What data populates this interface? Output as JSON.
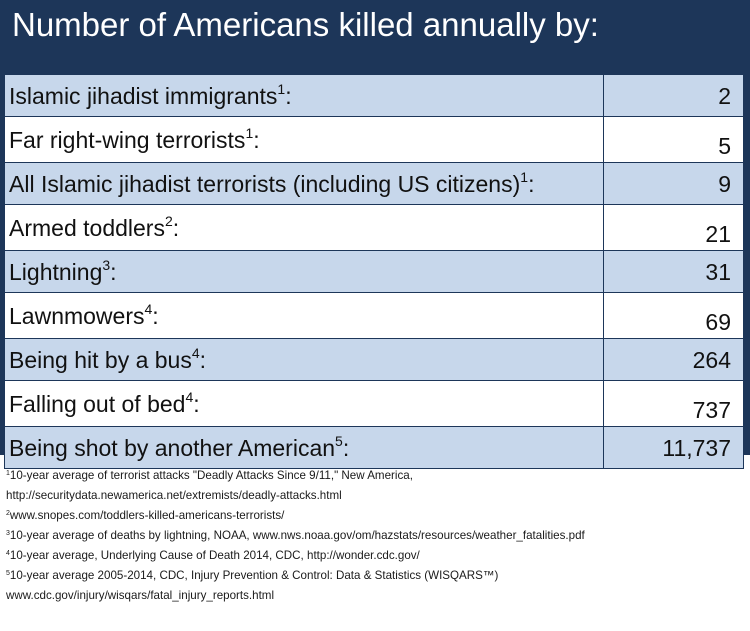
{
  "title": "Number of Americans killed annually by:",
  "chart_data": {
    "type": "table",
    "rows": [
      {
        "label": "Islamic jihadist immigrants",
        "ref": "1",
        "value": "2"
      },
      {
        "label": "Far right-wing terrorists",
        "ref": "1",
        "value": "5"
      },
      {
        "label": "All Islamic jihadist terrorists (including US citizens)",
        "ref": "1",
        "value": "9"
      },
      {
        "label": "Armed toddlers",
        "ref": "2",
        "value": "21"
      },
      {
        "label": "Lightning",
        "ref": "3",
        "value": "31"
      },
      {
        "label": "Lawnmowers",
        "ref": "4",
        "value": "69"
      },
      {
        "label": "Being hit by a bus",
        "ref": "4",
        "value": "264"
      },
      {
        "label": "Falling out of bed",
        "ref": "4",
        "value": "737"
      },
      {
        "label": "Being shot by another American",
        "ref": "5",
        "value": "11,737"
      }
    ]
  },
  "footnotes": [
    {
      "ref": "1",
      "text": "10-year average of terrorist attacks \"Deadly Attacks Since 9/11,\" New America,"
    },
    {
      "ref": "",
      "text": "http://securitydata.newamerica.net/extremists/deadly-attacks.html"
    },
    {
      "ref": "2",
      "text": "www.snopes.com/toddlers-killed-americans-terrorists/"
    },
    {
      "ref": "3",
      "text": "10-year average of deaths by lightning, NOAA, www.nws.noaa.gov/om/hazstats/resources/weather_fatalities.pdf"
    },
    {
      "ref": "4",
      "text": "10-year average, Underlying Cause of Death 2014, CDC, http://wonder.cdc.gov/"
    },
    {
      "ref": "5",
      "text": "10-year average 2005-2014, CDC, Injury Prevention & Control: Data & Statistics (WISQARS™)"
    },
    {
      "ref": "",
      "text": "www.cdc.gov/injury/wisqars/fatal_injury_reports.html"
    }
  ],
  "colors": {
    "header_bg": "#1d3659",
    "row_shaded": "#c7d7eb",
    "row_plain": "#ffffff"
  }
}
